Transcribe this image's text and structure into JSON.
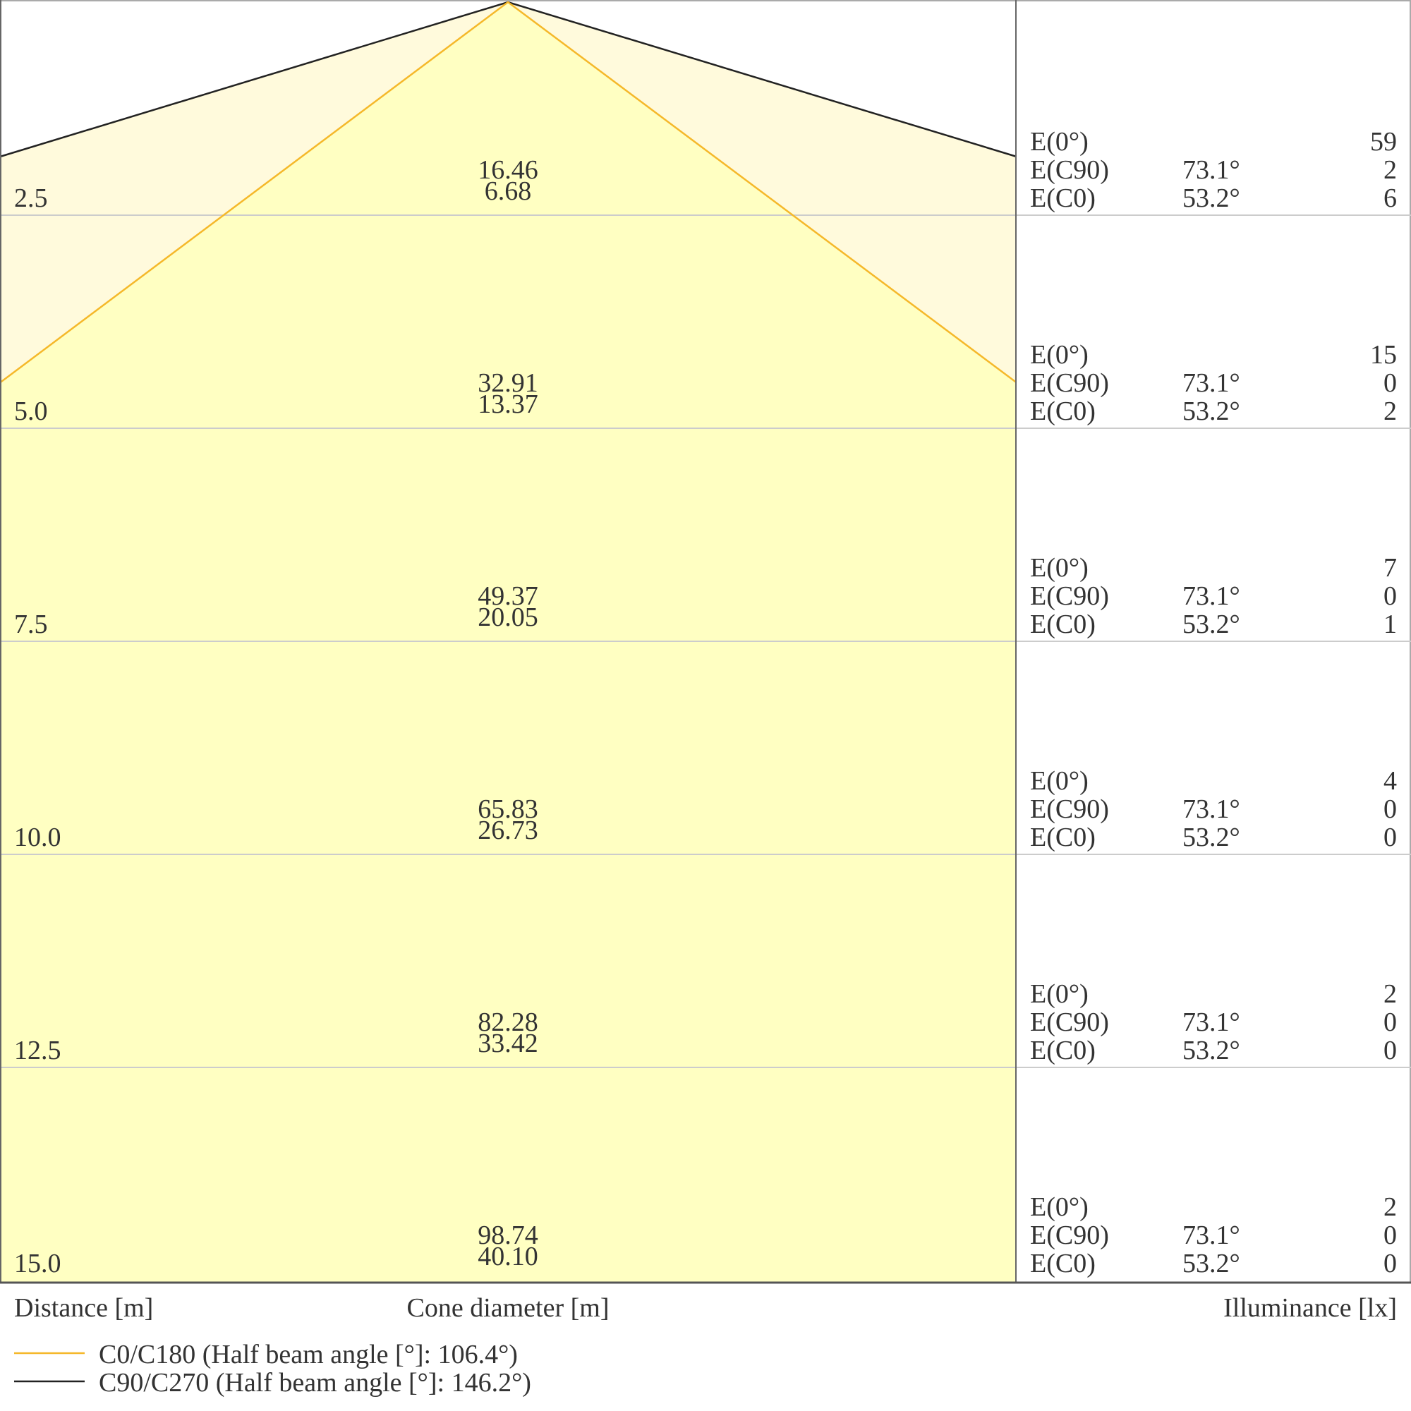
{
  "chart_data": {
    "type": "cone diagram",
    "distance_axis_label": "Distance [m]",
    "cone_axis_label": "Cone diameter [m]",
    "illuminance_axis_label": "Illuminance [lx]",
    "distances": [
      "2.5",
      "5.0",
      "7.5",
      "10.0",
      "12.5",
      "15.0"
    ],
    "cone_diameter_c90": [
      "16.46",
      "32.91",
      "49.37",
      "65.83",
      "82.28",
      "98.74"
    ],
    "cone_diameter_c0": [
      "6.68",
      "13.37",
      "20.05",
      "26.73",
      "33.42",
      "40.10"
    ],
    "illuminance_rows": [
      {
        "label": "E(0°)",
        "angle": "",
        "values": [
          "59",
          "15",
          "7",
          "4",
          "2",
          "2"
        ]
      },
      {
        "label": "E(C90)",
        "angle": "73.1°",
        "values": [
          "2",
          "0",
          "0",
          "0",
          "0",
          "0"
        ]
      },
      {
        "label": "E(C0)",
        "angle": "53.2°",
        "values": [
          "6",
          "2",
          "1",
          "0",
          "0",
          "0"
        ]
      }
    ],
    "series": [
      {
        "name": "C0/C180 (Half beam angle [°]: 106.4°)",
        "half_beam_angle": 106.4,
        "color": "#f5b82a"
      },
      {
        "name": "C90/C270 (Half beam angle [°]: 146.2°)",
        "half_beam_angle": 146.2,
        "color": "#222222"
      }
    ],
    "colors": {
      "cone_fill": "#ffffc2",
      "grid": "#cccccc",
      "frame": "#555555"
    }
  }
}
